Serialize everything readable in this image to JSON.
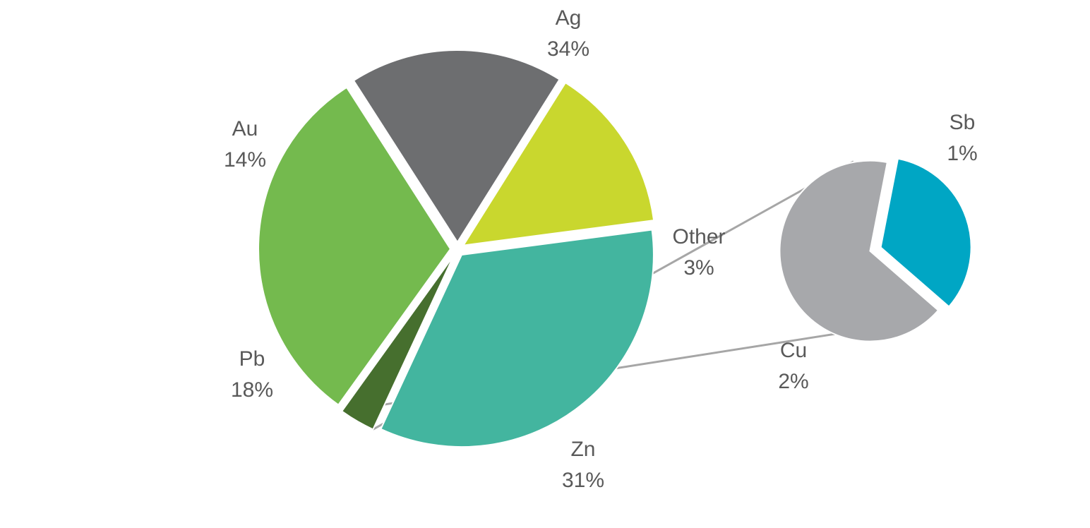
{
  "chart_data": {
    "type": "pie",
    "title": "",
    "main_pie": {
      "slices": [
        {
          "name": "Ag",
          "value": 34,
          "label": "34%",
          "color": "#43b59f"
        },
        {
          "name": "Other",
          "value": 3,
          "label": "3%",
          "color": "#466f2e"
        },
        {
          "name": "Zn",
          "value": 31,
          "label": "31%",
          "color": "#74ba4e"
        },
        {
          "name": "Pb",
          "value": 18,
          "label": "18%",
          "color": "#6d6e70"
        },
        {
          "name": "Au",
          "value": 14,
          "label": "14%",
          "color": "#c9d72e"
        }
      ]
    },
    "secondary_pie": {
      "breakdown_of": "Other",
      "slices": [
        {
          "name": "Sb",
          "value": 1,
          "label": "1%",
          "color": "#00a6c4"
        },
        {
          "name": "Cu",
          "value": 2,
          "label": "2%",
          "color": "#a7a8ab"
        }
      ]
    },
    "label_color": "#595959",
    "connector_color": "#a6a6a6",
    "slice_separator_color": "#ffffff"
  }
}
